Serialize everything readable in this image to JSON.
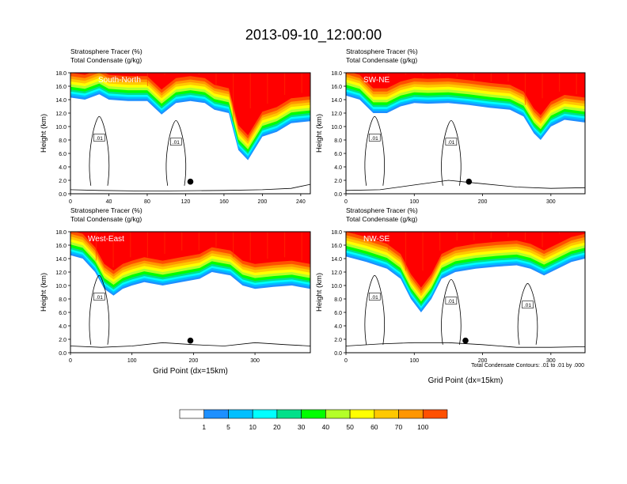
{
  "figure": {
    "title": "2013-09-10_12:00:00",
    "note": "Total Condensate Contours: .01 to .01 by .000"
  },
  "colorbar": {
    "labels": [
      "1",
      "5",
      "10",
      "20",
      "30",
      "40",
      "50",
      "60",
      "70",
      "100"
    ],
    "colors": [
      "#ffffff",
      "#1e90ff",
      "#00bfff",
      "#00ffff",
      "#00e08a",
      "#00ff00",
      "#b4ff28",
      "#ffff00",
      "#ffc800",
      "#ff9600",
      "#ff5000",
      "#ff0000"
    ]
  },
  "chart_data": [
    {
      "type": "contour",
      "panel_label": "South-North",
      "title_line1": "Stratosphere Tracer   (%)",
      "title_line2": "Total Condensate   (g/kg)",
      "xlabel": "",
      "ylabel": "Height (km)",
      "xlim": [
        0,
        250
      ],
      "ylim": [
        0,
        18
      ],
      "xticks": [
        "0",
        "40",
        "80",
        "120",
        "160",
        "200",
        "240"
      ],
      "yticks": [
        "0.0",
        "2.0",
        "4.0",
        "6.0",
        "8.0",
        "10.0",
        "12.0",
        "14.0",
        "16.0",
        "18.0"
      ],
      "contour_labels": [
        ".01",
        ".01"
      ],
      "marker_x": 125,
      "marker_y": 1.8,
      "tracer_base": [
        [
          0,
          14.3
        ],
        [
          15,
          14.0
        ],
        [
          30,
          14.8
        ],
        [
          40,
          14.0
        ],
        [
          60,
          13.8
        ],
        [
          80,
          13.8
        ],
        [
          95,
          11.8
        ],
        [
          110,
          13.5
        ],
        [
          125,
          13.8
        ],
        [
          140,
          13.5
        ],
        [
          150,
          12.5
        ],
        [
          165,
          12.0
        ],
        [
          175,
          6.5
        ],
        [
          185,
          5.0
        ],
        [
          200,
          8.5
        ],
        [
          215,
          9.2
        ],
        [
          230,
          10.5
        ],
        [
          250,
          10.8
        ]
      ],
      "terrain": [
        [
          0,
          0.6
        ],
        [
          30,
          0.5
        ],
        [
          80,
          0.4
        ],
        [
          160,
          0.5
        ],
        [
          200,
          0.6
        ],
        [
          230,
          0.8
        ],
        [
          250,
          1.4
        ]
      ]
    },
    {
      "type": "contour",
      "panel_label": "SW-NE",
      "title_line1": "Stratosphere Tracer   (%)",
      "title_line2": "Total Condensate   (g/kg)",
      "xlabel": "",
      "ylabel": "Height (km)",
      "xlim": [
        0,
        350
      ],
      "ylim": [
        0,
        18
      ],
      "xticks": [
        "0",
        "100",
        "200",
        "300"
      ],
      "yticks": [
        "0.0",
        "2.0",
        "4.0",
        "6.0",
        "8.0",
        "10.0",
        "12.0",
        "14.0",
        "16.0",
        "18.0"
      ],
      "contour_labels": [
        ".01",
        ".01"
      ],
      "marker_x": 180,
      "marker_y": 1.8,
      "tracer_base": [
        [
          0,
          14.6
        ],
        [
          20,
          14.0
        ],
        [
          40,
          12.0
        ],
        [
          60,
          12.0
        ],
        [
          80,
          13.0
        ],
        [
          100,
          13.5
        ],
        [
          120,
          13.4
        ],
        [
          150,
          13.5
        ],
        [
          180,
          13.2
        ],
        [
          210,
          12.8
        ],
        [
          240,
          12.5
        ],
        [
          260,
          11.5
        ],
        [
          275,
          9.0
        ],
        [
          285,
          8.0
        ],
        [
          300,
          10.0
        ],
        [
          320,
          11.0
        ],
        [
          350,
          10.6
        ]
      ],
      "terrain": [
        [
          0,
          0.5
        ],
        [
          50,
          0.6
        ],
        [
          100,
          1.3
        ],
        [
          150,
          2.0
        ],
        [
          200,
          1.5
        ],
        [
          250,
          1.0
        ],
        [
          300,
          0.8
        ],
        [
          350,
          0.9
        ]
      ]
    },
    {
      "type": "contour",
      "panel_label": "West-East",
      "title_line1": "Stratosphere Tracer   (%)",
      "title_line2": "Total Condensate   (g/kg)",
      "xlabel": "Grid Point (dx=15km)",
      "ylabel": "Height (km)",
      "xlim": [
        0,
        390
      ],
      "ylim": [
        0,
        18
      ],
      "xticks": [
        "0",
        "100",
        "200",
        "300"
      ],
      "yticks": [
        "0.0",
        "2.0",
        "4.0",
        "6.0",
        "8.0",
        "10.0",
        "12.0",
        "14.0",
        "16.0",
        "18.0"
      ],
      "contour_labels": [
        ".01"
      ],
      "marker_x": 195,
      "marker_y": 1.8,
      "tracer_base": [
        [
          0,
          14.5
        ],
        [
          20,
          14.0
        ],
        [
          40,
          12.0
        ],
        [
          55,
          9.5
        ],
        [
          70,
          8.5
        ],
        [
          85,
          9.5
        ],
        [
          100,
          10.0
        ],
        [
          120,
          10.5
        ],
        [
          150,
          10.0
        ],
        [
          180,
          10.5
        ],
        [
          210,
          11.0
        ],
        [
          230,
          12.0
        ],
        [
          260,
          11.5
        ],
        [
          280,
          10.0
        ],
        [
          300,
          9.5
        ],
        [
          330,
          9.8
        ],
        [
          360,
          10.0
        ],
        [
          390,
          9.5
        ]
      ],
      "terrain": [
        [
          0,
          1.0
        ],
        [
          50,
          0.8
        ],
        [
          100,
          1.0
        ],
        [
          150,
          1.5
        ],
        [
          200,
          1.2
        ],
        [
          250,
          1.0
        ],
        [
          300,
          1.5
        ],
        [
          350,
          1.2
        ],
        [
          390,
          1.0
        ]
      ]
    },
    {
      "type": "contour",
      "panel_label": "NW-SE",
      "title_line1": "Stratosphere Tracer   (%)",
      "title_line2": "Total Condensate   (g/kg)",
      "xlabel": "Grid Point (dx=15km)",
      "ylabel": "Height (km)",
      "xlim": [
        0,
        350
      ],
      "ylim": [
        0,
        18
      ],
      "xticks": [
        "0",
        "100",
        "200",
        "300"
      ],
      "yticks": [
        "0.0",
        "2.0",
        "4.0",
        "6.0",
        "8.0",
        "10.0",
        "12.0",
        "14.0",
        "16.0",
        "18.0"
      ],
      "contour_labels": [
        ".01",
        ".01",
        ".01"
      ],
      "marker_x": 175,
      "marker_y": 1.8,
      "tracer_base": [
        [
          0,
          14.3
        ],
        [
          30,
          13.5
        ],
        [
          60,
          12.5
        ],
        [
          80,
          11.0
        ],
        [
          95,
          8.0
        ],
        [
          110,
          6.0
        ],
        [
          125,
          8.0
        ],
        [
          140,
          11.0
        ],
        [
          160,
          12.0
        ],
        [
          190,
          12.5
        ],
        [
          220,
          12.8
        ],
        [
          250,
          13.0
        ],
        [
          270,
          12.5
        ],
        [
          290,
          11.5
        ],
        [
          310,
          12.5
        ],
        [
          330,
          13.5
        ],
        [
          350,
          14.0
        ]
      ],
      "terrain": [
        [
          0,
          1.0
        ],
        [
          50,
          1.3
        ],
        [
          100,
          1.5
        ],
        [
          150,
          1.5
        ],
        [
          200,
          1.2
        ],
        [
          250,
          0.8
        ],
        [
          300,
          0.8
        ],
        [
          350,
          0.9
        ]
      ]
    }
  ]
}
